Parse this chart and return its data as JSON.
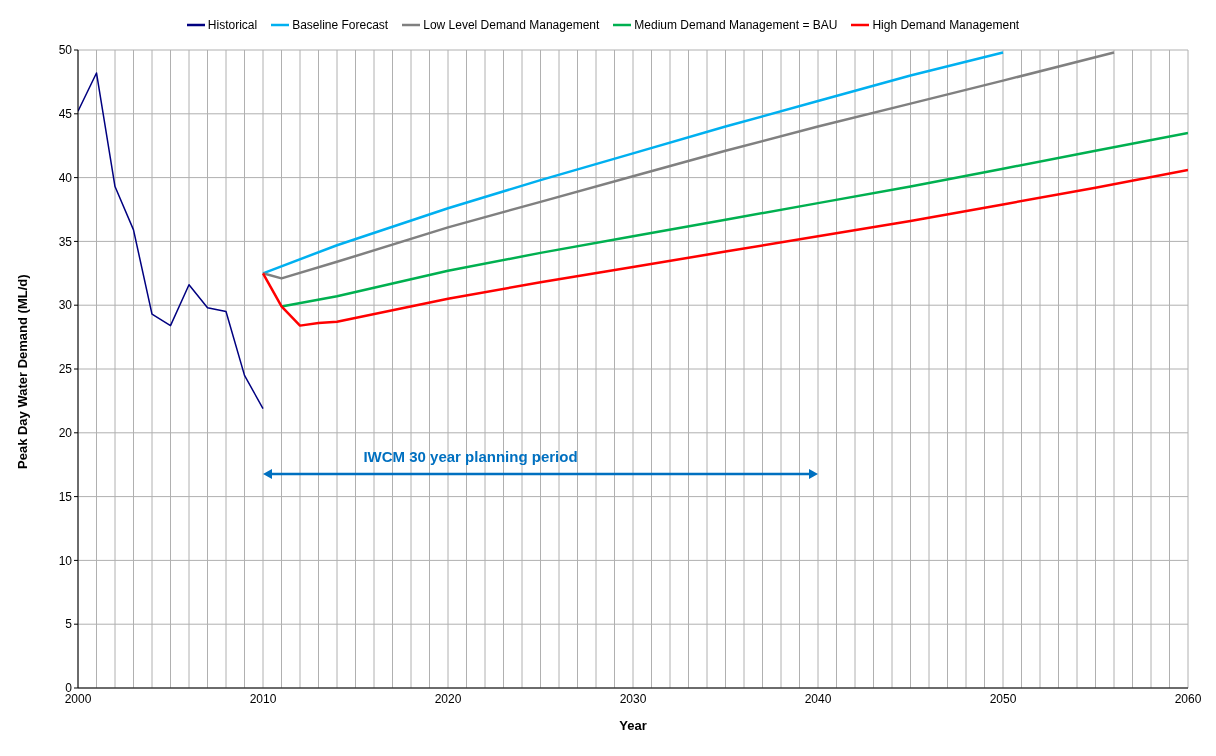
{
  "chart_data": {
    "type": "line",
    "xlabel": "Year",
    "ylabel": "Peak Day Water Demand (ML/d)",
    "xlim": [
      2000,
      2060
    ],
    "ylim": [
      0,
      50
    ],
    "xticks": [
      2000,
      {
        "value": 2001,
        "label": null
      },
      {
        "value": 2002,
        "label": null
      },
      {
        "value": 2003,
        "label": null
      },
      {
        "value": 2004,
        "label": null
      },
      {
        "value": 2005,
        "label": null
      },
      {
        "value": 2006,
        "label": null
      },
      {
        "value": 2007,
        "label": null
      },
      {
        "value": 2008,
        "label": null
      },
      {
        "value": 2009,
        "label": null
      },
      2010,
      {
        "value": 2011,
        "label": null
      },
      {
        "value": 2012,
        "label": null
      },
      {
        "value": 2013,
        "label": null
      },
      {
        "value": 2014,
        "label": null
      },
      {
        "value": 2015,
        "label": null
      },
      {
        "value": 2016,
        "label": null
      },
      {
        "value": 2017,
        "label": null
      },
      {
        "value": 2018,
        "label": null
      },
      {
        "value": 2019,
        "label": null
      },
      2020,
      {
        "value": 2021,
        "label": null
      },
      {
        "value": 2022,
        "label": null
      },
      {
        "value": 2023,
        "label": null
      },
      {
        "value": 2024,
        "label": null
      },
      {
        "value": 2025,
        "label": null
      },
      {
        "value": 2026,
        "label": null
      },
      {
        "value": 2027,
        "label": null
      },
      {
        "value": 2028,
        "label": null
      },
      {
        "value": 2029,
        "label": null
      },
      2030,
      {
        "value": 2031,
        "label": null
      },
      {
        "value": 2032,
        "label": null
      },
      {
        "value": 2033,
        "label": null
      },
      {
        "value": 2034,
        "label": null
      },
      {
        "value": 2035,
        "label": null
      },
      {
        "value": 2036,
        "label": null
      },
      {
        "value": 2037,
        "label": null
      },
      {
        "value": 2038,
        "label": null
      },
      {
        "value": 2039,
        "label": null
      },
      2040,
      {
        "value": 2041,
        "label": null
      },
      {
        "value": 2042,
        "label": null
      },
      {
        "value": 2043,
        "label": null
      },
      {
        "value": 2044,
        "label": null
      },
      {
        "value": 2045,
        "label": null
      },
      {
        "value": 2046,
        "label": null
      },
      {
        "value": 2047,
        "label": null
      },
      {
        "value": 2048,
        "label": null
      },
      {
        "value": 2049,
        "label": null
      },
      2050,
      {
        "value": 2051,
        "label": null
      },
      {
        "value": 2052,
        "label": null
      },
      {
        "value": 2053,
        "label": null
      },
      {
        "value": 2054,
        "label": null
      },
      {
        "value": 2055,
        "label": null
      },
      {
        "value": 2056,
        "label": null
      },
      {
        "value": 2057,
        "label": null
      },
      {
        "value": 2058,
        "label": null
      },
      {
        "value": 2059,
        "label": null
      },
      2060
    ],
    "yticks": [
      0,
      5,
      10,
      15,
      20,
      25,
      30,
      35,
      40,
      45,
      50
    ],
    "grid": true,
    "legend": "top",
    "marker": "none",
    "line_style": "solid",
    "series": [
      {
        "name": "Historical",
        "color": "#000080",
        "x": [
          2000,
          2001,
          2002,
          2003,
          2004,
          2005,
          2006,
          2007,
          2008,
          2009,
          2010
        ],
        "values": [
          45.2,
          48.2,
          39.3,
          35.9,
          29.3,
          28.4,
          31.6,
          29.8,
          29.5,
          24.5,
          21.9
        ]
      },
      {
        "name": "Baseline Forecast",
        "color": "#00b0f0",
        "x": [
          2010,
          2014,
          2020,
          2025,
          2030,
          2035,
          2040,
          2045,
          2050
        ],
        "values": [
          32.5,
          34.7,
          37.6,
          39.8,
          41.9,
          44.0,
          46.0,
          48.0,
          49.8
        ]
      },
      {
        "name": "Low Level Demand Management",
        "color": "#808080",
        "x": [
          2010,
          2011,
          2014,
          2020,
          2025,
          2030,
          2035,
          2040,
          2045,
          2050,
          2056
        ],
        "values": [
          32.5,
          32.1,
          33.4,
          36.1,
          38.1,
          40.1,
          42.1,
          44.0,
          45.8,
          47.6,
          49.8
        ]
      },
      {
        "name": "Medium Demand Management = BAU",
        "color": "#00b050",
        "x": [
          2011,
          2014,
          2020,
          2025,
          2030,
          2035,
          2040,
          2045,
          2050,
          2055,
          2060
        ],
        "values": [
          29.9,
          30.7,
          32.7,
          34.1,
          35.4,
          36.7,
          38.0,
          39.3,
          40.7,
          42.1,
          43.5
        ]
      },
      {
        "name": "High Demand Management",
        "color": "#ff0000",
        "x": [
          2010,
          2011,
          2012,
          2013,
          2014,
          2020,
          2025,
          2030,
          2035,
          2040,
          2045,
          2050,
          2055,
          2060
        ],
        "values": [
          32.5,
          29.9,
          28.4,
          28.6,
          28.7,
          30.5,
          31.8,
          33.0,
          34.2,
          35.4,
          36.6,
          37.9,
          39.2,
          40.6
        ]
      }
    ],
    "annotations": [
      "IWCM 30 year planning period"
    ]
  }
}
